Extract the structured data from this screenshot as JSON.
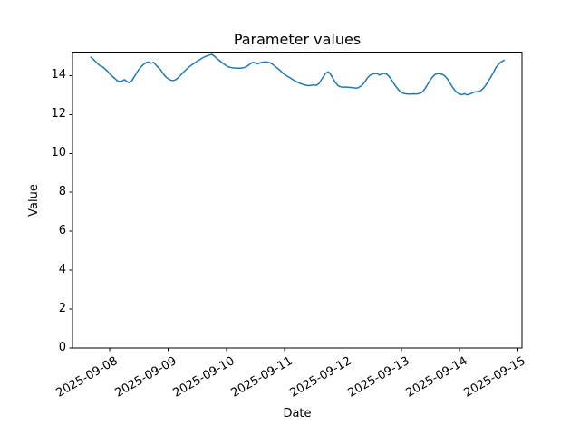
{
  "figure": {
    "background": "#ffffff",
    "text_color": "#000000"
  },
  "chart_data": {
    "type": "line",
    "title": "Parameter values",
    "xlabel": "Date",
    "ylabel": "Value",
    "grid": false,
    "legend": "none",
    "line_color": "#1f77b4",
    "line_width": 1.5,
    "axis_color": "#000000",
    "ylim": [
      0,
      15.2
    ],
    "xlim_days": [
      -0.64,
      7.07
    ],
    "y_ticks": [
      0,
      2,
      4,
      6,
      8,
      10,
      12,
      14
    ],
    "x_tick_days": [
      0,
      1,
      2,
      3,
      4,
      5,
      6,
      7
    ],
    "x_tick_labels": [
      "2025-09-08",
      "2025-09-09",
      "2025-09-10",
      "2025-09-11",
      "2025-09-12",
      "2025-09-13",
      "2025-09-14",
      "2025-09-15"
    ],
    "x_tick_rotation_deg": 30,
    "series": [
      {
        "name": "parameter-values",
        "x_unit": "days_since_2025-09-08",
        "points": [
          [
            -0.333,
            14.97
          ],
          [
            -0.292,
            14.86
          ],
          [
            -0.25,
            14.74
          ],
          [
            -0.208,
            14.61
          ],
          [
            -0.167,
            14.51
          ],
          [
            -0.125,
            14.45
          ],
          [
            -0.083,
            14.34
          ],
          [
            -0.042,
            14.23
          ],
          [
            0,
            14.09
          ],
          [
            0.042,
            13.96
          ],
          [
            0.083,
            13.86
          ],
          [
            0.125,
            13.74
          ],
          [
            0.167,
            13.69
          ],
          [
            0.208,
            13.71
          ],
          [
            0.25,
            13.79
          ],
          [
            0.292,
            13.7
          ],
          [
            0.333,
            13.63
          ],
          [
            0.375,
            13.73
          ],
          [
            0.417,
            13.92
          ],
          [
            0.458,
            14.13
          ],
          [
            0.5,
            14.32
          ],
          [
            0.542,
            14.47
          ],
          [
            0.583,
            14.58
          ],
          [
            0.625,
            14.67
          ],
          [
            0.667,
            14.7
          ],
          [
            0.708,
            14.63
          ],
          [
            0.75,
            14.68
          ],
          [
            0.792,
            14.54
          ],
          [
            0.833,
            14.41
          ],
          [
            0.875,
            14.28
          ],
          [
            0.917,
            14.09
          ],
          [
            0.958,
            13.94
          ],
          [
            1,
            13.84
          ],
          [
            1.042,
            13.77
          ],
          [
            1.083,
            13.74
          ],
          [
            1.125,
            13.78
          ],
          [
            1.167,
            13.87
          ],
          [
            1.208,
            14
          ],
          [
            1.25,
            14.13
          ],
          [
            1.292,
            14.26
          ],
          [
            1.333,
            14.37
          ],
          [
            1.375,
            14.48
          ],
          [
            1.417,
            14.57
          ],
          [
            1.458,
            14.66
          ],
          [
            1.5,
            14.74
          ],
          [
            1.542,
            14.81
          ],
          [
            1.583,
            14.89
          ],
          [
            1.625,
            14.96
          ],
          [
            1.667,
            15.01
          ],
          [
            1.708,
            15.05
          ],
          [
            1.75,
            15.09
          ],
          [
            1.792,
            15
          ],
          [
            1.833,
            14.89
          ],
          [
            1.875,
            14.78
          ],
          [
            1.917,
            14.68
          ],
          [
            1.958,
            14.59
          ],
          [
            2,
            14.5
          ],
          [
            2.042,
            14.44
          ],
          [
            2.083,
            14.41
          ],
          [
            2.125,
            14.39
          ],
          [
            2.167,
            14.38
          ],
          [
            2.208,
            14.38
          ],
          [
            2.25,
            14.38
          ],
          [
            2.292,
            14.4
          ],
          [
            2.333,
            14.44
          ],
          [
            2.375,
            14.52
          ],
          [
            2.417,
            14.62
          ],
          [
            2.458,
            14.68
          ],
          [
            2.5,
            14.64
          ],
          [
            2.542,
            14.6
          ],
          [
            2.583,
            14.66
          ],
          [
            2.625,
            14.69
          ],
          [
            2.667,
            14.7
          ],
          [
            2.708,
            14.69
          ],
          [
            2.75,
            14.66
          ],
          [
            2.792,
            14.58
          ],
          [
            2.833,
            14.48
          ],
          [
            2.875,
            14.38
          ],
          [
            2.917,
            14.27
          ],
          [
            2.958,
            14.16
          ],
          [
            3,
            14.05
          ],
          [
            3.042,
            13.97
          ],
          [
            3.083,
            13.9
          ],
          [
            3.125,
            13.82
          ],
          [
            3.167,
            13.74
          ],
          [
            3.208,
            13.67
          ],
          [
            3.25,
            13.62
          ],
          [
            3.292,
            13.57
          ],
          [
            3.333,
            13.53
          ],
          [
            3.375,
            13.5
          ],
          [
            3.417,
            13.48
          ],
          [
            3.458,
            13.5
          ],
          [
            3.5,
            13.52
          ],
          [
            3.542,
            13.5
          ],
          [
            3.583,
            13.58
          ],
          [
            3.625,
            13.76
          ],
          [
            3.667,
            13.96
          ],
          [
            3.708,
            14.13
          ],
          [
            3.75,
            14.19
          ],
          [
            3.792,
            14.04
          ],
          [
            3.833,
            13.82
          ],
          [
            3.875,
            13.62
          ],
          [
            3.917,
            13.48
          ],
          [
            3.958,
            13.42
          ],
          [
            4,
            13.4
          ],
          [
            4.042,
            13.41
          ],
          [
            4.083,
            13.4
          ],
          [
            4.125,
            13.39
          ],
          [
            4.167,
            13.38
          ],
          [
            4.208,
            13.36
          ],
          [
            4.25,
            13.36
          ],
          [
            4.292,
            13.43
          ],
          [
            4.333,
            13.52
          ],
          [
            4.375,
            13.67
          ],
          [
            4.417,
            13.87
          ],
          [
            4.458,
            14
          ],
          [
            4.5,
            14.07
          ],
          [
            4.542,
            14.1
          ],
          [
            4.583,
            14.11
          ],
          [
            4.625,
            14.03
          ],
          [
            4.667,
            14.08
          ],
          [
            4.708,
            14.12
          ],
          [
            4.75,
            14.07
          ],
          [
            4.792,
            13.95
          ],
          [
            4.833,
            13.78
          ],
          [
            4.875,
            13.58
          ],
          [
            4.917,
            13.4
          ],
          [
            4.958,
            13.25
          ],
          [
            5,
            13.14
          ],
          [
            5.042,
            13.08
          ],
          [
            5.083,
            13.06
          ],
          [
            5.125,
            13.05
          ],
          [
            5.167,
            13.05
          ],
          [
            5.208,
            13.06
          ],
          [
            5.25,
            13.05
          ],
          [
            5.292,
            13.07
          ],
          [
            5.333,
            13.1
          ],
          [
            5.375,
            13.2
          ],
          [
            5.417,
            13.38
          ],
          [
            5.458,
            13.58
          ],
          [
            5.5,
            13.78
          ],
          [
            5.542,
            13.95
          ],
          [
            5.583,
            14.06
          ],
          [
            5.625,
            14.1
          ],
          [
            5.667,
            14.08
          ],
          [
            5.708,
            14.05
          ],
          [
            5.75,
            13.97
          ],
          [
            5.792,
            13.82
          ],
          [
            5.833,
            13.62
          ],
          [
            5.875,
            13.42
          ],
          [
            5.917,
            13.25
          ],
          [
            5.958,
            13.12
          ],
          [
            6,
            13.05
          ],
          [
            6.042,
            13.02
          ],
          [
            6.083,
            13.07
          ],
          [
            6.125,
            13.01
          ],
          [
            6.167,
            13.04
          ],
          [
            6.208,
            13.1
          ],
          [
            6.25,
            13.15
          ],
          [
            6.292,
            13.17
          ],
          [
            6.333,
            13.18
          ],
          [
            6.375,
            13.25
          ],
          [
            6.417,
            13.38
          ],
          [
            6.458,
            13.55
          ],
          [
            6.5,
            13.75
          ],
          [
            6.542,
            13.95
          ],
          [
            6.583,
            14.18
          ],
          [
            6.625,
            14.42
          ],
          [
            6.667,
            14.58
          ],
          [
            6.708,
            14.69
          ],
          [
            6.75,
            14.76
          ],
          [
            6.771,
            14.8
          ]
        ]
      }
    ]
  }
}
